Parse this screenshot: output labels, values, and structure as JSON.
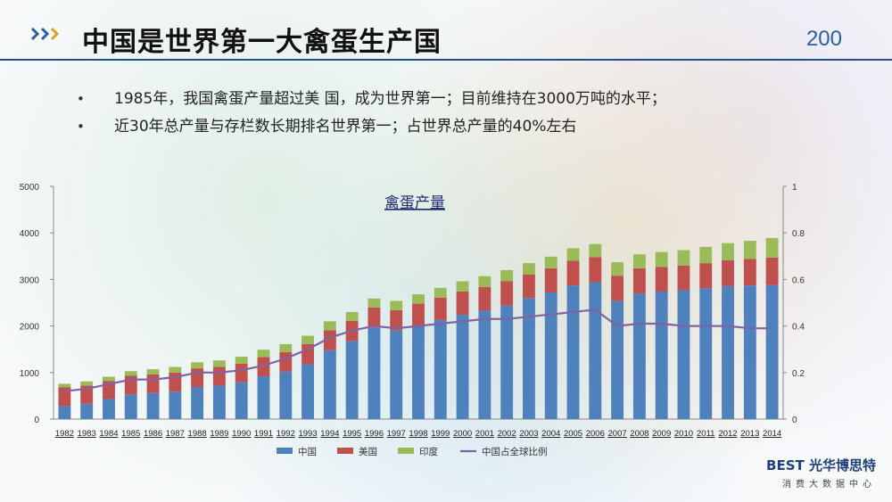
{
  "slide": {
    "title": "中国是世界第一大禽蛋生产国",
    "page_number": "200",
    "bullets": [
      "1985年，我国禽蛋产量超过美 国，成为世界第一；目前维持在3000万吨的水平；",
      "近30年总产量与存栏数长期排名世界第一；占世界总产量的40%左右"
    ],
    "logo_text": "BEST 光华博思特",
    "logo_subtext": "消费大数据中心",
    "accent_color": "#1f4f8f"
  },
  "chart_data": {
    "type": "bar",
    "stacked": true,
    "title": "禽蛋产量",
    "categories": [
      "1982",
      "1983",
      "1984",
      "1985",
      "1986",
      "1987",
      "1988",
      "1989",
      "1990",
      "1991",
      "1992",
      "1993",
      "1994",
      "1995",
      "1996",
      "1997",
      "1998",
      "1999",
      "2000",
      "2001",
      "2002",
      "2003",
      "2004",
      "2005",
      "2006",
      "2007",
      "2008",
      "2009",
      "2010",
      "2011",
      "2012",
      "2013",
      "2014"
    ],
    "series": [
      {
        "name": "中国",
        "color": "#4f81bd",
        "values": [
          280,
          330,
          430,
          530,
          560,
          590,
          690,
          720,
          790,
          920,
          1020,
          1180,
          1480,
          1680,
          1960,
          1900,
          2020,
          2130,
          2240,
          2330,
          2440,
          2600,
          2720,
          2870,
          2940,
          2540,
          2700,
          2740,
          2770,
          2810,
          2860,
          2870,
          2880
        ]
      },
      {
        "name": "美国",
        "color": "#c0504d",
        "values": [
          400,
          390,
          390,
          400,
          400,
          410,
          400,
          400,
          400,
          410,
          420,
          430,
          430,
          430,
          440,
          440,
          460,
          480,
          500,
          510,
          520,
          510,
          520,
          530,
          540,
          540,
          540,
          530,
          530,
          540,
          550,
          570,
          590
        ]
      },
      {
        "name": "印度",
        "color": "#9bbb59",
        "values": [
          80,
          90,
          90,
          100,
          110,
          120,
          130,
          140,
          150,
          160,
          170,
          180,
          190,
          190,
          190,
          200,
          200,
          210,
          220,
          230,
          240,
          240,
          250,
          270,
          280,
          290,
          300,
          320,
          330,
          350,
          370,
          390,
          420
        ]
      },
      {
        "name": "中国占全球比例",
        "color": "#8064a2",
        "type": "line",
        "axis": "right",
        "values": [
          0.12,
          0.13,
          0.15,
          0.17,
          0.17,
          0.18,
          0.2,
          0.2,
          0.21,
          0.23,
          0.26,
          0.3,
          0.35,
          0.38,
          0.4,
          0.39,
          0.4,
          0.41,
          0.42,
          0.43,
          0.43,
          0.44,
          0.45,
          0.46,
          0.47,
          0.4,
          0.41,
          0.41,
          0.4,
          0.4,
          0.4,
          0.39,
          0.39
        ]
      }
    ],
    "ylim": [
      0,
      5000
    ],
    "y_ticks": [
      0,
      1000,
      2000,
      3000,
      4000,
      5000
    ],
    "y2lim": [
      0,
      1
    ],
    "y2_ticks": [
      "0",
      "0.2",
      "0.4",
      "0.6",
      "0.8",
      "1"
    ],
    "legend_position": "bottom",
    "grid": false
  }
}
